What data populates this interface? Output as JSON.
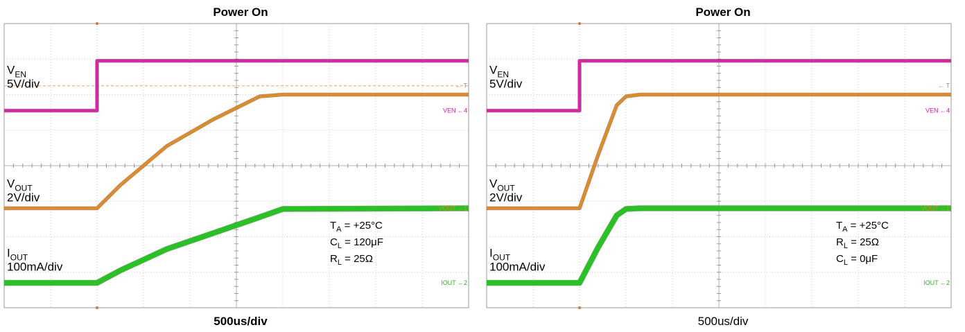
{
  "chart_data": [
    {
      "type": "line",
      "title": "Power On",
      "xlabel": "500us/div",
      "xlim": [
        0,
        10
      ],
      "ylim": [
        0,
        8
      ],
      "grid": true,
      "series": [
        {
          "name": "VEN",
          "color": "#e020a8",
          "x": [
            0,
            2.0,
            2.0,
            10
          ],
          "y": [
            5.55,
            5.55,
            6.95,
            6.95
          ]
        },
        {
          "name": "VOUT",
          "color": "#e88a1a",
          "x": [
            0,
            2.0,
            2.5,
            3.5,
            4.5,
            5.5,
            6.0,
            10
          ],
          "y": [
            2.8,
            2.8,
            3.45,
            4.55,
            5.3,
            5.95,
            6.0,
            6.0
          ]
        },
        {
          "name": "IOUT",
          "color": "#22c61c",
          "x": [
            0,
            2.0,
            2.5,
            3.5,
            4.5,
            5.5,
            6.0,
            10
          ],
          "y": [
            0.7,
            0.7,
            1.05,
            1.65,
            2.1,
            2.55,
            2.78,
            2.8
          ]
        }
      ],
      "labels": {
        "ven_main": "V",
        "ven_sub": "EN",
        "ven_scale": "5V/div",
        "vout_main": "V",
        "vout_sub": "OUT",
        "vout_scale": "2V/div",
        "iout_main": "I",
        "iout_sub": "OUT",
        "iout_scale": "100mA/div"
      },
      "conditions": [
        {
          "main": "T",
          "sub": "A",
          "rest": " = +25°C"
        },
        {
          "main": "C",
          "sub": "L",
          "rest": " = 120μF"
        },
        {
          "main": "R",
          "sub": "L",
          "rest": " = 25Ω"
        }
      ],
      "markers": {
        "trigger": "T",
        "ven": "VEN",
        "vout": "VOUT",
        "iout": "IOUT",
        "ch4": "4",
        "ch1": "1",
        "ch2": "2"
      }
    },
    {
      "type": "line",
      "title": "Power On",
      "xlabel": "500us/div",
      "xlim": [
        0,
        10
      ],
      "ylim": [
        0,
        8
      ],
      "grid": true,
      "series": [
        {
          "name": "VEN",
          "color": "#e020a8",
          "x": [
            0,
            2.0,
            2.0,
            10
          ],
          "y": [
            5.55,
            5.55,
            6.95,
            6.95
          ]
        },
        {
          "name": "VOUT",
          "color": "#e88a1a",
          "x": [
            0,
            2.0,
            2.4,
            2.8,
            3.0,
            3.3,
            10
          ],
          "y": [
            2.8,
            2.8,
            4.3,
            5.7,
            5.95,
            6.0,
            6.0
          ]
        },
        {
          "name": "IOUT",
          "color": "#22c61c",
          "x": [
            0,
            2.0,
            2.4,
            2.8,
            3.0,
            3.3,
            10
          ],
          "y": [
            0.7,
            0.7,
            1.7,
            2.6,
            2.78,
            2.8,
            2.8
          ]
        }
      ],
      "labels": {
        "ven_main": "V",
        "ven_sub": "EN",
        "ven_scale": "5V/div",
        "vout_main": "V",
        "vout_sub": "OUT",
        "vout_scale": "2V/div",
        "iout_main": "I",
        "iout_sub": "OUT",
        "iout_scale": "100mA/div"
      },
      "conditions": [
        {
          "main": "T",
          "sub": "A",
          "rest": " = +25°C"
        },
        {
          "main": "R",
          "sub": "L",
          "rest": " = 25Ω"
        },
        {
          "main": "C",
          "sub": "L",
          "rest": " = 0μF"
        }
      ],
      "markers": {
        "trigger": "T",
        "ven": "VEN",
        "vout": "VOUT",
        "iout": "IOUT",
        "ch4": "4",
        "ch1": "1",
        "ch2": "2"
      }
    }
  ]
}
